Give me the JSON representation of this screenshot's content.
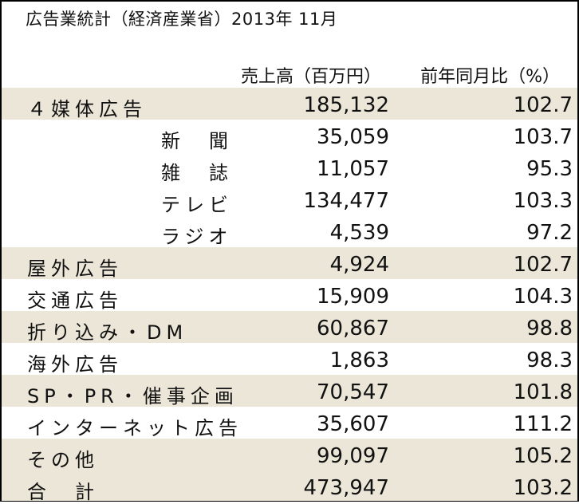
{
  "title": "広告業統計（経済産業省）2013年 11月",
  "columns": {
    "sales": "売上高（百万円）",
    "ratio": "前年同月比（%）"
  },
  "rows": [
    {
      "label": "４媒体広告",
      "sales": "185,132",
      "ratio": "102.7",
      "shade": true,
      "sub": false
    },
    {
      "label": "新　聞",
      "sales": "35,059",
      "ratio": "103.7",
      "shade": false,
      "sub": true
    },
    {
      "label": "雑　誌",
      "sales": "11,057",
      "ratio": "95.3",
      "shade": false,
      "sub": true
    },
    {
      "label": "テレビ",
      "sales": "134,477",
      "ratio": "103.3",
      "shade": false,
      "sub": true
    },
    {
      "label": "ラジオ",
      "sales": "4,539",
      "ratio": "97.2",
      "shade": false,
      "sub": true
    },
    {
      "label": "屋外広告",
      "sales": "4,924",
      "ratio": "102.7",
      "shade": true,
      "sub": false
    },
    {
      "label": "交通広告",
      "sales": "15,909",
      "ratio": "104.3",
      "shade": false,
      "sub": false
    },
    {
      "label": "折り込み・DM",
      "sales": "60,867",
      "ratio": "98.8",
      "shade": true,
      "sub": false
    },
    {
      "label": "海外広告",
      "sales": "1,863",
      "ratio": "98.3",
      "shade": false,
      "sub": false
    },
    {
      "label": "SP・PR・催事企画",
      "sales": "70,547",
      "ratio": "101.8",
      "shade": true,
      "sub": false
    },
    {
      "label": "インターネット広告",
      "sales": "35,607",
      "ratio": "111.2",
      "shade": false,
      "sub": false
    },
    {
      "label": "その他",
      "sales": "99,097",
      "ratio": "105.2",
      "shade": true,
      "sub": false
    },
    {
      "label": "合　計",
      "sales": "473,947",
      "ratio": "103.2",
      "shade": true,
      "sub": false
    }
  ],
  "colors": {
    "shade": "#ebe6d7",
    "text": "#111111",
    "border": "#000000"
  }
}
